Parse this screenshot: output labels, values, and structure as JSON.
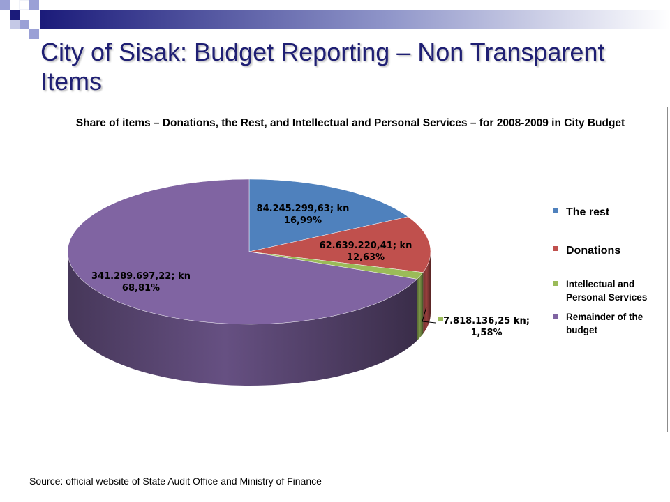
{
  "slide": {
    "title": "City of Sisak: Budget Reporting – Non Transparent Items",
    "source": "Source: official website of State Audit Office and Ministry of Finance"
  },
  "colors": {
    "title": "#1f1f73",
    "deco_dark": "#1b1b7a",
    "deco_light": "#9aa0d6",
    "the_rest": "#4f81bd",
    "donations": "#c0504d",
    "intellectual": "#9bbb59",
    "remainder": "#8064a2"
  },
  "chart_data": {
    "type": "pie",
    "three_d": true,
    "title": "Share of items – Donations, the Rest, and Intellectual and Personal Services – for 2008-2009 in City Budget",
    "legend_position": "right",
    "slices": [
      {
        "name": "The rest",
        "value": 84245299.63,
        "percent": 16.99,
        "label_amount": "84.245.299,63; kn",
        "label_percent": "16,99%",
        "color": "#4f81bd"
      },
      {
        "name": "Donations",
        "value": 62639220.41,
        "percent": 12.63,
        "label_amount": "62.639.220,41; kn",
        "label_percent": "12,63%",
        "color": "#c0504d"
      },
      {
        "name": "Intellectual and Personal Services",
        "value": 7818136.25,
        "percent": 1.58,
        "label_amount": "7.818.136,25 kn;",
        "label_percent": "1,58%",
        "color": "#9bbb59"
      },
      {
        "name": "Remainder of the budget",
        "value": 341289697.22,
        "percent": 68.81,
        "label_amount": "341.289.697,22; kn",
        "label_percent": "68,81%",
        "color": "#8064a2"
      }
    ],
    "legend": [
      {
        "label_lines": [
          "The rest"
        ],
        "color": "#4f81bd"
      },
      {
        "label_lines": [
          "Donations"
        ],
        "color": "#c0504d"
      },
      {
        "label_lines": [
          "Intellectual and",
          "Personal Services"
        ],
        "color": "#9bbb59"
      },
      {
        "label_lines": [
          "Remainder of the",
          "budget"
        ],
        "color": "#8064a2"
      }
    ]
  }
}
